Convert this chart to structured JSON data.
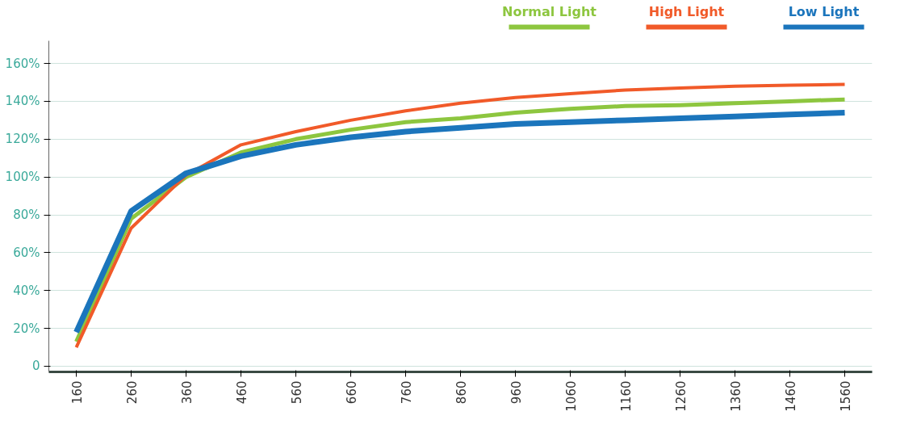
{
  "chart_data": {
    "type": "line",
    "categories": [
      "160",
      "260",
      "360",
      "460",
      "560",
      "660",
      "760",
      "860",
      "960",
      "1060",
      "1160",
      "1260",
      "1360",
      "1460",
      "1560"
    ],
    "series": [
      {
        "name": "Normal Light",
        "color": "#8dc63f",
        "values": [
          13,
          78,
          100,
          113,
          120,
          125,
          129,
          131,
          134,
          136,
          137.5,
          138,
          139,
          140,
          141
        ]
      },
      {
        "name": "High Light",
        "color": "#f15a29",
        "values": [
          10,
          73,
          101,
          117,
          124,
          130,
          135,
          139,
          142,
          144,
          146,
          147,
          148,
          148.5,
          149
        ]
      },
      {
        "name": "Low Light",
        "color": "#1b75bc",
        "values": [
          18,
          82,
          102,
          111,
          117,
          121,
          124,
          126,
          128,
          129,
          130,
          131,
          132,
          133,
          134
        ]
      }
    ],
    "ylim": [
      -3,
      172
    ],
    "yticks": [
      {
        "value": 0,
        "label": "0"
      },
      {
        "value": 20,
        "label": "20%"
      },
      {
        "value": 40,
        "label": "40%"
      },
      {
        "value": 60,
        "label": "60%"
      },
      {
        "value": 80,
        "label": "80%"
      },
      {
        "value": 100,
        "label": "100%"
      },
      {
        "value": 120,
        "label": "120%"
      },
      {
        "value": 140,
        "label": "140%"
      },
      {
        "value": 160,
        "label": "160%"
      }
    ],
    "grid": "y",
    "legend": "top right",
    "marker": "none",
    "line_style": "solid"
  }
}
